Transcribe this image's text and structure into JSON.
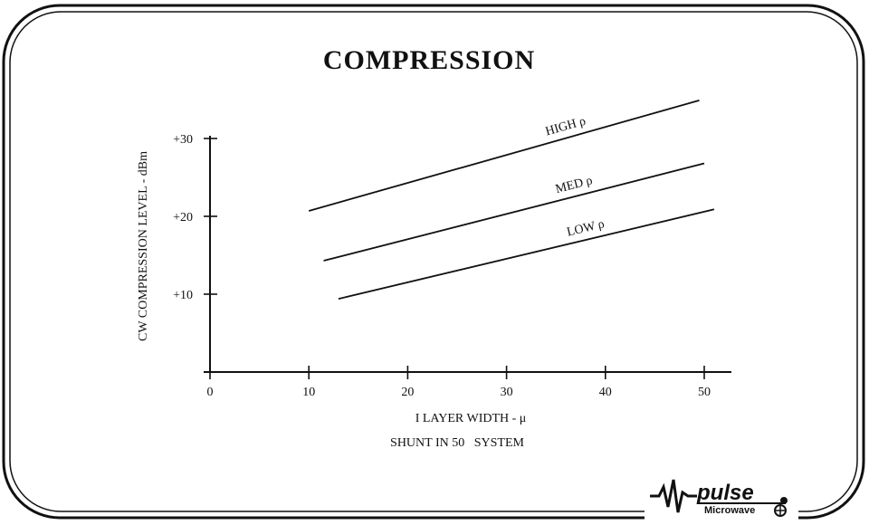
{
  "chart_data": {
    "type": "line",
    "title": "COMPRESSION",
    "xlabel": "I LAYER WIDTH - μ",
    "ylabel": "CW COMPRESSION LEVEL - dBm",
    "footnote": "SHUNT IN 50   SYSTEM",
    "xlim": [
      0,
      53
    ],
    "ylim": [
      0,
      30
    ],
    "x_ticks": [
      {
        "value": 0,
        "label": "0"
      },
      {
        "value": 10,
        "label": "10"
      },
      {
        "value": 20,
        "label": "20"
      },
      {
        "value": 30,
        "label": "30"
      },
      {
        "value": 40,
        "label": "40"
      },
      {
        "value": 50,
        "label": "50"
      }
    ],
    "y_ticks": [
      {
        "value": 10,
        "label": "+10"
      },
      {
        "value": 20,
        "label": "+20"
      },
      {
        "value": 30,
        "label": "+30"
      }
    ],
    "grid": false,
    "legend": "none",
    "series": [
      {
        "name": "HIGH ρ",
        "x": [
          10,
          49.5
        ],
        "y": [
          20.7,
          34.9
        ]
      },
      {
        "name": "MED ρ",
        "x": [
          11.5,
          50
        ],
        "y": [
          14.3,
          26.8
        ]
      },
      {
        "name": "LOW ρ",
        "x": [
          13,
          51
        ],
        "y": [
          9.4,
          20.9
        ]
      }
    ]
  },
  "logo": {
    "name": "pulse",
    "tagline": "Microwave"
  }
}
